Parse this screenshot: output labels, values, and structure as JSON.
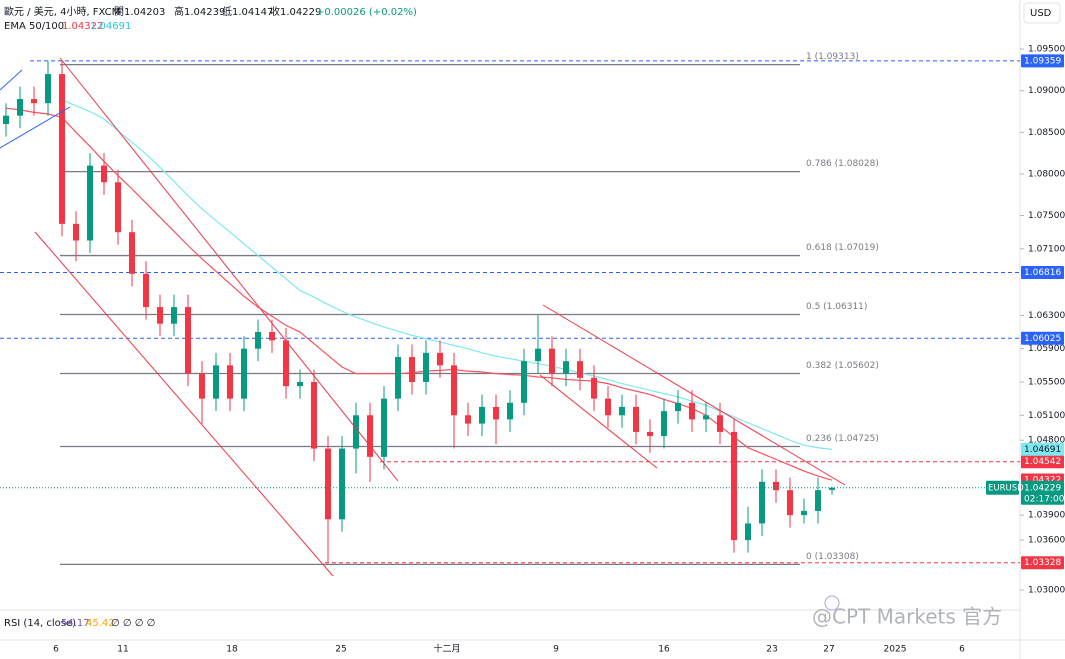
{
  "header": {
    "symbol": "歐元 / 美元, 4小時, FXCM",
    "open": "開1.04203",
    "high": "高1.04239",
    "low": "低1.04147",
    "close": "收1.04229",
    "change": "+0.00026 (+0.02%)",
    "ema_label": "EMA 50/100",
    "ema50": "1.04322",
    "ema100": "1.04691",
    "currency": "USD"
  },
  "rsi": {
    "label": "RSI (14, close)",
    "v1": "54.17",
    "v2": "45.42",
    "rest": "∅ ∅ ∅ ∅"
  },
  "watermark": "@CPT Markets 官方",
  "chart_data": {
    "type": "candlestick",
    "open": [
      1.086,
      1.087,
      1.089,
      1.0885,
      1.092,
      1.074,
      1.072,
      1.081,
      1.079,
      1.073,
      1.068,
      1.064,
      1.062,
      1.064,
      1.056,
      1.053,
      1.057,
      1.053,
      1.059,
      1.061,
      1.06,
      1.0545,
      1.055,
      1.047,
      1.0385,
      1.047,
      1.051,
      1.046,
      1.053,
      1.058,
      1.055,
      1.0585,
      1.057,
      1.051,
      1.05,
      1.052,
      1.0505,
      1.0525,
      1.0575,
      1.059,
      1.056,
      1.0575,
      1.0555,
      1.053,
      1.051,
      1.052,
      1.049,
      1.0485,
      1.0515,
      1.0525,
      1.0505,
      1.051,
      1.049,
      1.036,
      1.038,
      1.043,
      1.042,
      1.039,
      1.0395,
      1.04203
    ],
    "high": [
      1.0885,
      1.0905,
      1.0905,
      1.0936,
      1.0935,
      1.0755,
      1.0825,
      1.0825,
      1.0805,
      1.0745,
      1.0695,
      1.0655,
      1.0655,
      1.0655,
      1.0575,
      1.0585,
      1.0585,
      1.0605,
      1.0625,
      1.0625,
      1.0615,
      1.0565,
      1.0565,
      1.0485,
      1.0485,
      1.0525,
      1.0525,
      1.0545,
      1.0595,
      1.0595,
      1.06,
      1.06,
      1.0585,
      1.0525,
      1.0535,
      1.0535,
      1.054,
      1.059,
      1.063,
      1.0605,
      1.059,
      1.059,
      1.057,
      1.0545,
      1.0535,
      1.0535,
      1.0505,
      1.053,
      1.054,
      1.054,
      1.0525,
      1.0525,
      1.0505,
      1.04,
      1.0445,
      1.0445,
      1.0435,
      1.041,
      1.0435,
      1.04239
    ],
    "low": [
      1.0845,
      1.0855,
      1.087,
      1.087,
      1.0725,
      1.0695,
      1.0705,
      1.0775,
      1.0715,
      1.0665,
      1.0625,
      1.0605,
      1.0605,
      1.0545,
      1.05,
      1.0515,
      1.0515,
      1.0515,
      1.0575,
      1.0585,
      1.053,
      1.053,
      1.0455,
      1.0333,
      1.037,
      1.044,
      1.043,
      1.0445,
      1.0515,
      1.0535,
      1.0535,
      1.0555,
      1.047,
      1.0485,
      1.0485,
      1.0475,
      1.049,
      1.051,
      1.056,
      1.0545,
      1.0545,
      1.054,
      1.0515,
      1.0495,
      1.0495,
      1.0475,
      1.0465,
      1.047,
      1.05,
      1.049,
      1.049,
      1.0475,
      1.0345,
      1.0345,
      1.0365,
      1.0405,
      1.0375,
      1.038,
      1.038,
      1.04147
    ],
    "close": [
      1.087,
      1.089,
      1.0885,
      1.092,
      1.074,
      1.072,
      1.081,
      1.079,
      1.073,
      1.068,
      1.064,
      1.062,
      1.064,
      1.056,
      1.053,
      1.057,
      1.053,
      1.059,
      1.061,
      1.06,
      1.0545,
      1.055,
      1.047,
      1.0385,
      1.047,
      1.051,
      1.046,
      1.053,
      1.058,
      1.055,
      1.0585,
      1.057,
      1.051,
      1.05,
      1.052,
      1.0505,
      1.0525,
      1.0575,
      1.059,
      1.056,
      1.0575,
      1.0555,
      1.053,
      1.051,
      1.052,
      1.049,
      1.0485,
      1.0515,
      1.0525,
      1.0505,
      1.051,
      1.049,
      1.036,
      1.038,
      1.043,
      1.042,
      1.039,
      1.0395,
      1.042,
      1.04229
    ],
    "up_color": "#089981",
    "down_color": "#f23645",
    "series": [
      {
        "name": "EMA 50",
        "color": "#f7525f",
        "values": [
          1.0879,
          1.0877,
          1.0874,
          1.0872,
          1.0868,
          1.085,
          1.0833,
          1.0815,
          1.0798,
          1.0782,
          1.0765,
          1.0748,
          1.0731,
          1.0714,
          1.0698,
          1.0683,
          1.0668,
          1.0653,
          1.064,
          1.0629,
          1.0618,
          1.061,
          1.0596,
          1.0582,
          1.0568,
          1.056,
          1.056,
          1.056,
          1.056,
          1.0561,
          1.0563,
          1.0564,
          1.0565,
          1.0563,
          1.0562,
          1.056,
          1.0559,
          1.0558,
          1.0556,
          1.0555,
          1.0553,
          1.0552,
          1.0551,
          1.0548,
          1.0543,
          1.0539,
          1.0535,
          1.0529,
          1.0524,
          1.0518,
          1.051,
          1.0497,
          1.0484,
          1.0471,
          1.0464,
          1.0457,
          1.045,
          1.0443,
          1.0437,
          1.0432
        ]
      },
      {
        "name": "EMA 100",
        "color": "#7ee8f0",
        "values": [
          null,
          null,
          null,
          null,
          1.0889,
          1.0882,
          1.0875,
          1.0866,
          1.0852,
          1.0838,
          1.0824,
          1.0808,
          1.0791,
          1.0774,
          1.0758,
          1.0744,
          1.073,
          1.0716,
          1.0702,
          1.0688,
          1.0674,
          1.066,
          1.0652,
          1.0643,
          1.0635,
          1.0628,
          1.0622,
          1.0616,
          1.0611,
          1.0606,
          1.0602,
          1.0598,
          1.0594,
          1.059,
          1.0585,
          1.0581,
          1.0578,
          1.0575,
          1.0572,
          1.0569,
          1.0565,
          1.0561,
          1.0557,
          1.0553,
          1.0548,
          1.0544,
          1.054,
          1.0536,
          1.0532,
          1.0527,
          1.0522,
          1.0515,
          1.0508,
          1.0501,
          1.0494,
          1.0487,
          1.048,
          1.0474,
          1.0471,
          1.0469
        ]
      }
    ],
    "ylim": [
      1.0276,
      1.1009
    ],
    "yticks": [
      {
        "value": 1.095,
        "label": "1.09500"
      },
      {
        "value": 1.09,
        "label": "1.09000"
      },
      {
        "value": 1.085,
        "label": "1.08500"
      },
      {
        "value": 1.08,
        "label": "1.08000"
      },
      {
        "value": 1.075,
        "label": "1.07500"
      },
      {
        "value": 1.071,
        "label": "1.07100"
      },
      {
        "value": 1.063,
        "label": "1.06300"
      },
      {
        "value": 1.059,
        "label": "1.05900"
      },
      {
        "value": 1.055,
        "label": "1.05500"
      },
      {
        "value": 1.051,
        "label": "1.05100"
      },
      {
        "value": 1.048,
        "label": "1.04800"
      },
      {
        "value": 1.039,
        "label": "1.03900"
      },
      {
        "value": 1.036,
        "label": "1.03600"
      },
      {
        "value": 1.03,
        "label": "1.03000"
      }
    ],
    "xtick_labels": [
      "6",
      "11",
      "18",
      "25",
      "十二月",
      "9",
      "16",
      "23",
      "27",
      "2025",
      "6"
    ],
    "fib_levels": [
      {
        "label": "1 (1.09313)",
        "value": 1.09313
      },
      {
        "label": "0.786 (1.08028)",
        "value": 1.08028
      },
      {
        "label": "0.618 (1.07019)",
        "value": 1.07019
      },
      {
        "label": "0.5 (1.06311)",
        "value": 1.06311
      },
      {
        "label": "0.382 (1.05602)",
        "value": 1.05602
      },
      {
        "label": "0.236 (1.04725)",
        "value": 1.04725
      },
      {
        "label": "0 (1.03308)",
        "value": 1.03308
      }
    ],
    "price_lines": [
      {
        "value": 1.09359,
        "color": "#2962ff"
      },
      {
        "value": 1.06816,
        "color": "#2962ff"
      },
      {
        "value": 1.06025,
        "color": "#2962ff"
      },
      {
        "value": 1.04542,
        "color": "#f23645"
      },
      {
        "value": 1.03328,
        "color": "#f23645"
      }
    ],
    "badges": [
      {
        "value": 1.04691,
        "color": "#7ee8f0"
      },
      {
        "value": 1.04322,
        "color": "#f23645"
      }
    ],
    "current": {
      "symbol": "EURUSD",
      "value": 1.04229,
      "countdown": "02:17:00",
      "color": "#089981"
    }
  }
}
